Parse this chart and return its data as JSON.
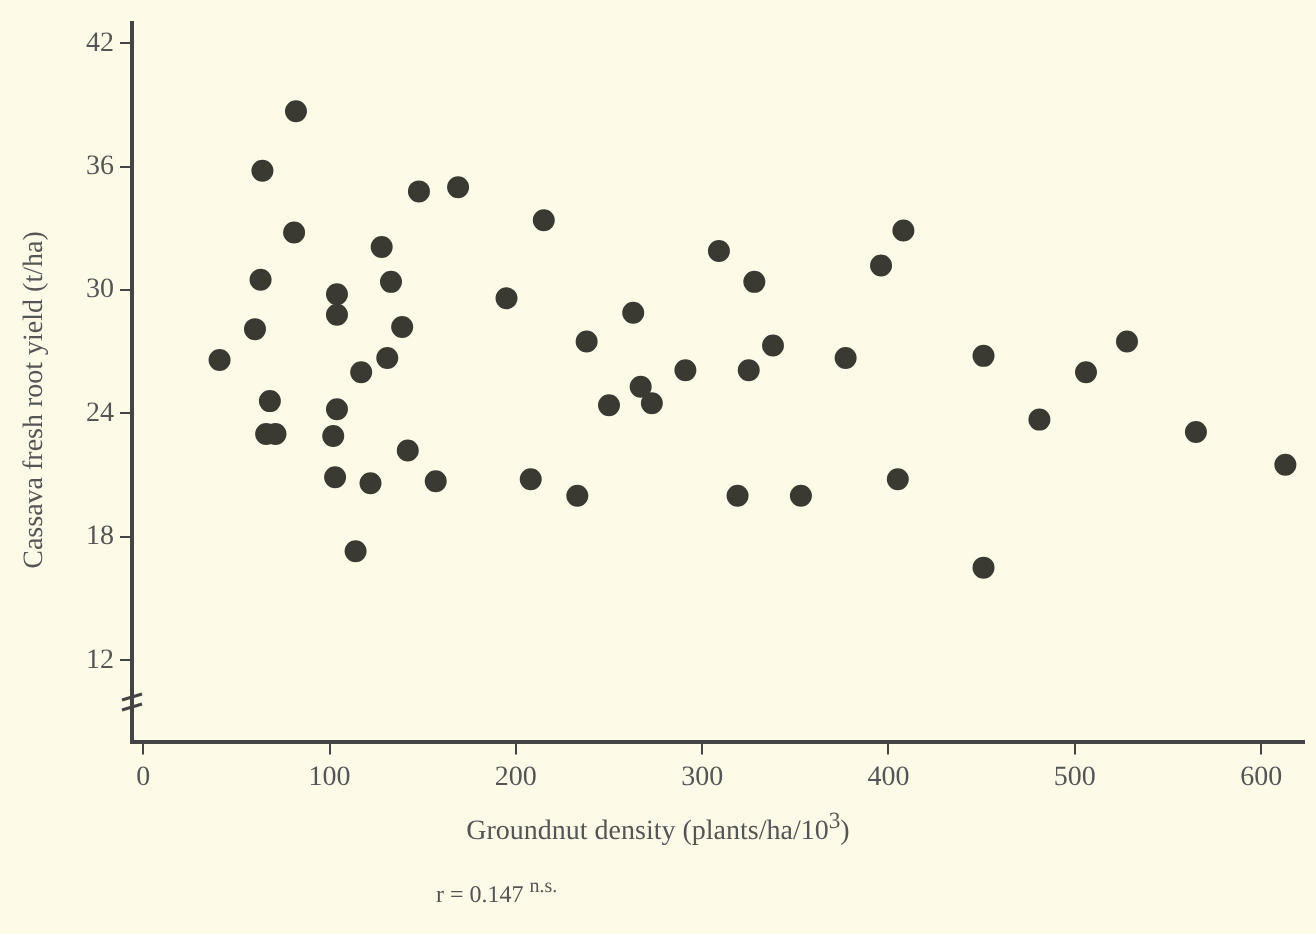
{
  "chart_data": {
    "type": "scatter",
    "xlabel": "Groundnut density (plants/ha/10$^{3}$)",
    "ylabel": "Cassava fresh root yield (t/ha)",
    "annotations": [
      "r = 0.147 $^{n.s.}$"
    ],
    "series": [
      {
        "color": "#3a3a32",
        "x": [
          41,
          60,
          63,
          64,
          68,
          66,
          71,
          82,
          81,
          104,
          104,
          104,
          102,
          103,
          117,
          114,
          122,
          128,
          133,
          131,
          139,
          142,
          148,
          157,
          169,
          195,
          215,
          208,
          233,
          238,
          250,
          263,
          267,
          273,
          291,
          309,
          328,
          325,
          338,
          377,
          396,
          408,
          451,
          481,
          506,
          528,
          565,
          613,
          405,
          319,
          353,
          451
        ],
        "values": [
          26.6,
          28.1,
          30.5,
          35.8,
          24.6,
          23.0,
          23.0,
          38.7,
          32.8,
          29.8,
          28.8,
          24.2,
          22.9,
          20.9,
          26.0,
          17.3,
          20.6,
          32.1,
          30.4,
          26.7,
          28.2,
          22.2,
          34.8,
          20.7,
          35.0,
          29.6,
          33.4,
          20.8,
          20.0,
          27.5,
          24.4,
          28.9,
          25.3,
          24.5,
          26.1,
          31.9,
          30.4,
          26.1,
          27.3,
          26.7,
          31.2,
          32.9,
          26.8,
          23.7,
          26.0,
          27.5,
          23.1,
          21.5,
          20.8,
          20.0,
          20.0,
          16.5
        ]
      }
    ],
    "xlim": [
      -6,
      623
    ],
    "ylim": [
      8,
      43
    ],
    "xticks": [
      0,
      100,
      200,
      300,
      400,
      500,
      600
    ],
    "yticks": [
      12,
      18,
      24,
      30,
      36,
      42
    ],
    "marker": "circle",
    "grid": false,
    "legend": false
  }
}
